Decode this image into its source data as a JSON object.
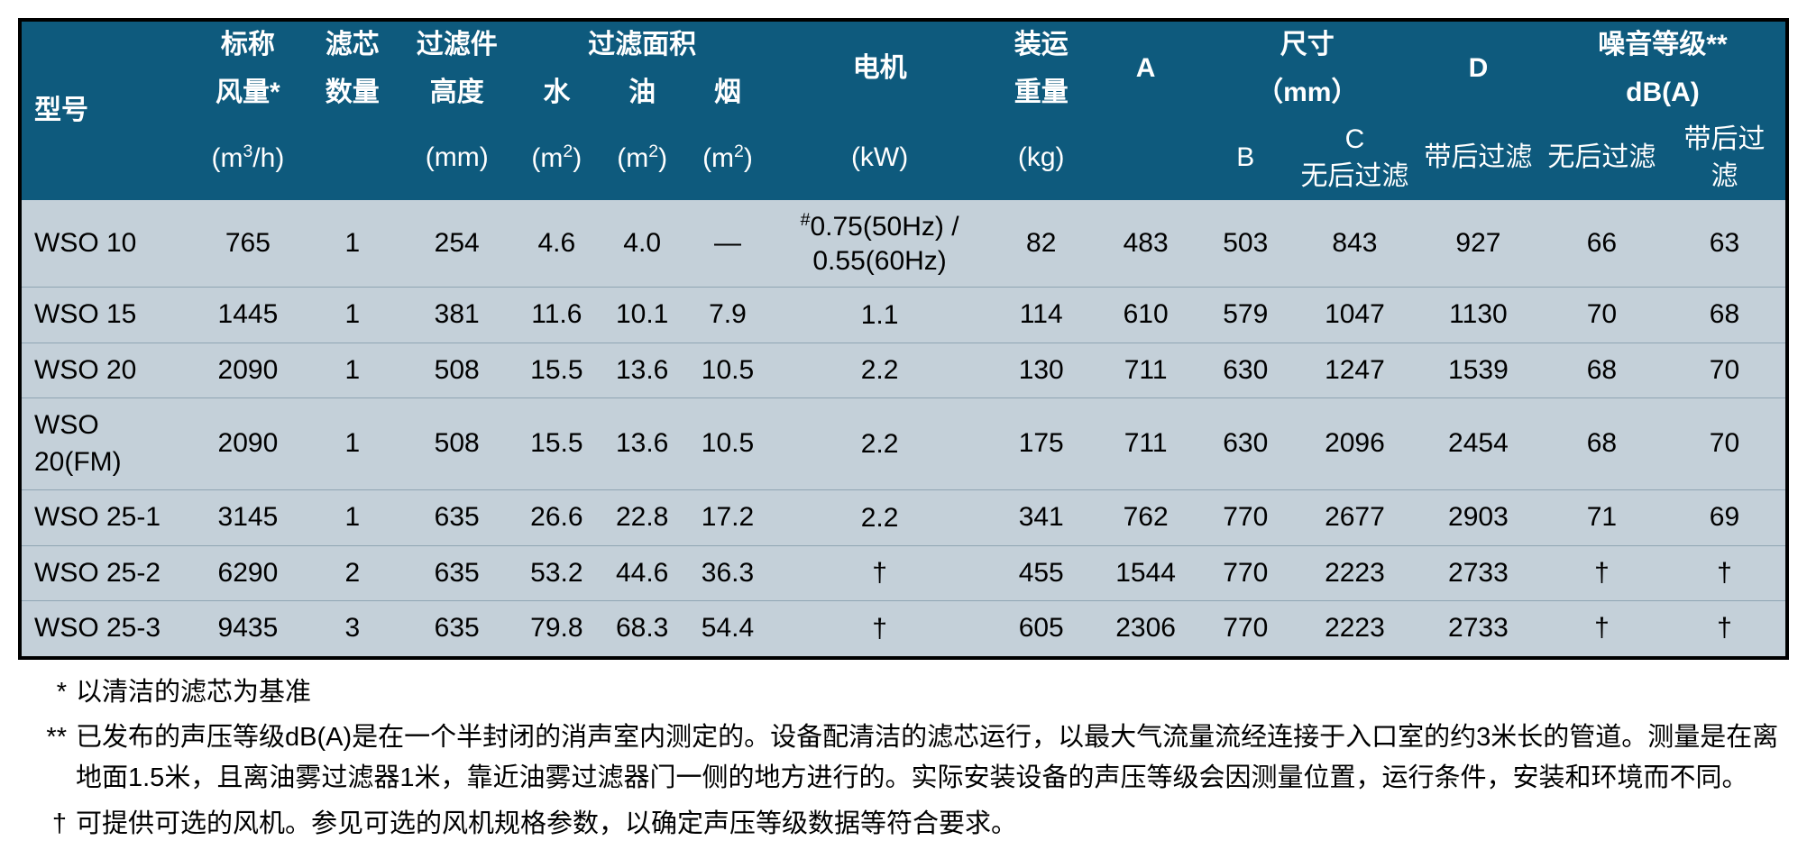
{
  "colors": {
    "header_bg": "#0e5a7d",
    "header_fg": "#ffffff",
    "body_bg": "#c4d0d9",
    "row_border": "#8fa5b3",
    "table_border": "#000000",
    "text": "#000000"
  },
  "headers": {
    "model": "型号",
    "airflow_l1": "标称",
    "airflow_l2": "风量*",
    "airflow_unit": "(m³/h)",
    "cart_l1": "滤芯",
    "cart_l2": "数量",
    "height_l1": "过滤件",
    "height_l2": "高度",
    "height_unit": "(mm)",
    "filter_area": "过滤面积",
    "water": "水",
    "oil": "油",
    "smoke": "烟",
    "area_unit_water": "(m²)",
    "area_unit_oil": "(m²)",
    "area_unit_smoke": "(m²)",
    "motor": "电机",
    "motor_unit": "(kW)",
    "ship_l1": "装运",
    "ship_l2": "重量",
    "ship_unit": "(kg)",
    "dim_l1": "尺寸",
    "dim_l2": "（mm）",
    "A": "A",
    "B": "B",
    "C": "C",
    "C_sub": "无后过滤",
    "D": "D",
    "D_sub": "带后过滤",
    "noise": "噪音等级**",
    "noise_unit": "dB(A)",
    "noise_no": "无后过滤",
    "noise_with": "带后过滤"
  },
  "rows": [
    {
      "model": "WSO 10",
      "airflow": "765",
      "cart": "1",
      "height": "254",
      "water": "4.6",
      "oil": "4.0",
      "smoke": "—",
      "motor_l1": "#0.75(50Hz) /",
      "motor_l2": "0.55(60Hz)",
      "weight": "82",
      "A": "483",
      "B": "503",
      "C": "843",
      "D": "927",
      "n1": "66",
      "n2": "63"
    },
    {
      "model": "WSO 15",
      "airflow": "1445",
      "cart": "1",
      "height": "381",
      "water": "11.6",
      "oil": "10.1",
      "smoke": "7.9",
      "motor_l1": "1.1",
      "motor_l2": "",
      "weight": "114",
      "A": "610",
      "B": "579",
      "C": "1047",
      "D": "1130",
      "n1": "70",
      "n2": "68"
    },
    {
      "model": "WSO 20",
      "airflow": "2090",
      "cart": "1",
      "height": "508",
      "water": "15.5",
      "oil": "13.6",
      "smoke": "10.5",
      "motor_l1": "2.2",
      "motor_l2": "",
      "weight": "130",
      "A": "711",
      "B": "630",
      "C": "1247",
      "D": "1539",
      "n1": "68",
      "n2": "70"
    },
    {
      "model": "WSO 20(FM)",
      "airflow": "2090",
      "cart": "1",
      "height": "508",
      "water": "15.5",
      "oil": "13.6",
      "smoke": "10.5",
      "motor_l1": "2.2",
      "motor_l2": "",
      "weight": "175",
      "A": "711",
      "B": "630",
      "C": "2096",
      "D": "2454",
      "n1": "68",
      "n2": "70"
    },
    {
      "model": "WSO 25-1",
      "airflow": "3145",
      "cart": "1",
      "height": "635",
      "water": "26.6",
      "oil": "22.8",
      "smoke": "17.2",
      "motor_l1": "2.2",
      "motor_l2": "",
      "weight": "341",
      "A": "762",
      "B": "770",
      "C": "2677",
      "D": "2903",
      "n1": "71",
      "n2": "69"
    },
    {
      "model": "WSO 25-2",
      "airflow": "6290",
      "cart": "2",
      "height": "635",
      "water": "53.2",
      "oil": "44.6",
      "smoke": "36.3",
      "motor_l1": "†",
      "motor_l2": "",
      "weight": "455",
      "A": "1544",
      "B": "770",
      "C": "2223",
      "D": "2733",
      "n1": "†",
      "n2": "†"
    },
    {
      "model": "WSO 25-3",
      "airflow": "9435",
      "cart": "3",
      "height": "635",
      "water": "79.8",
      "oil": "68.3",
      "smoke": "54.4",
      "motor_l1": "†",
      "motor_l2": "",
      "weight": "605",
      "A": "2306",
      "B": "770",
      "C": "2223",
      "D": "2733",
      "n1": "†",
      "n2": "†"
    }
  ],
  "footnotes": {
    "f1_mark": "*",
    "f1_text": "以清洁的滤芯为基准",
    "f2_mark": "**",
    "f2_text": "已发布的声压等级dB(A)是在一个半封闭的消声室内测定的。设备配清洁的滤芯运行，以最大气流量流经连接于入口室的约3米长的管道。测量是在离地面1.5米，且离油雾过滤器1米，靠近油雾过滤器门一侧的地方进行的。实际安装设备的声压等级会因测量位置，运行条件，安装和环境而不同。",
    "f3_mark": "†",
    "f3_text": "可提供可选的风机。参见可选的风机规格参数，以确定声压等级数据等符合要求。"
  }
}
